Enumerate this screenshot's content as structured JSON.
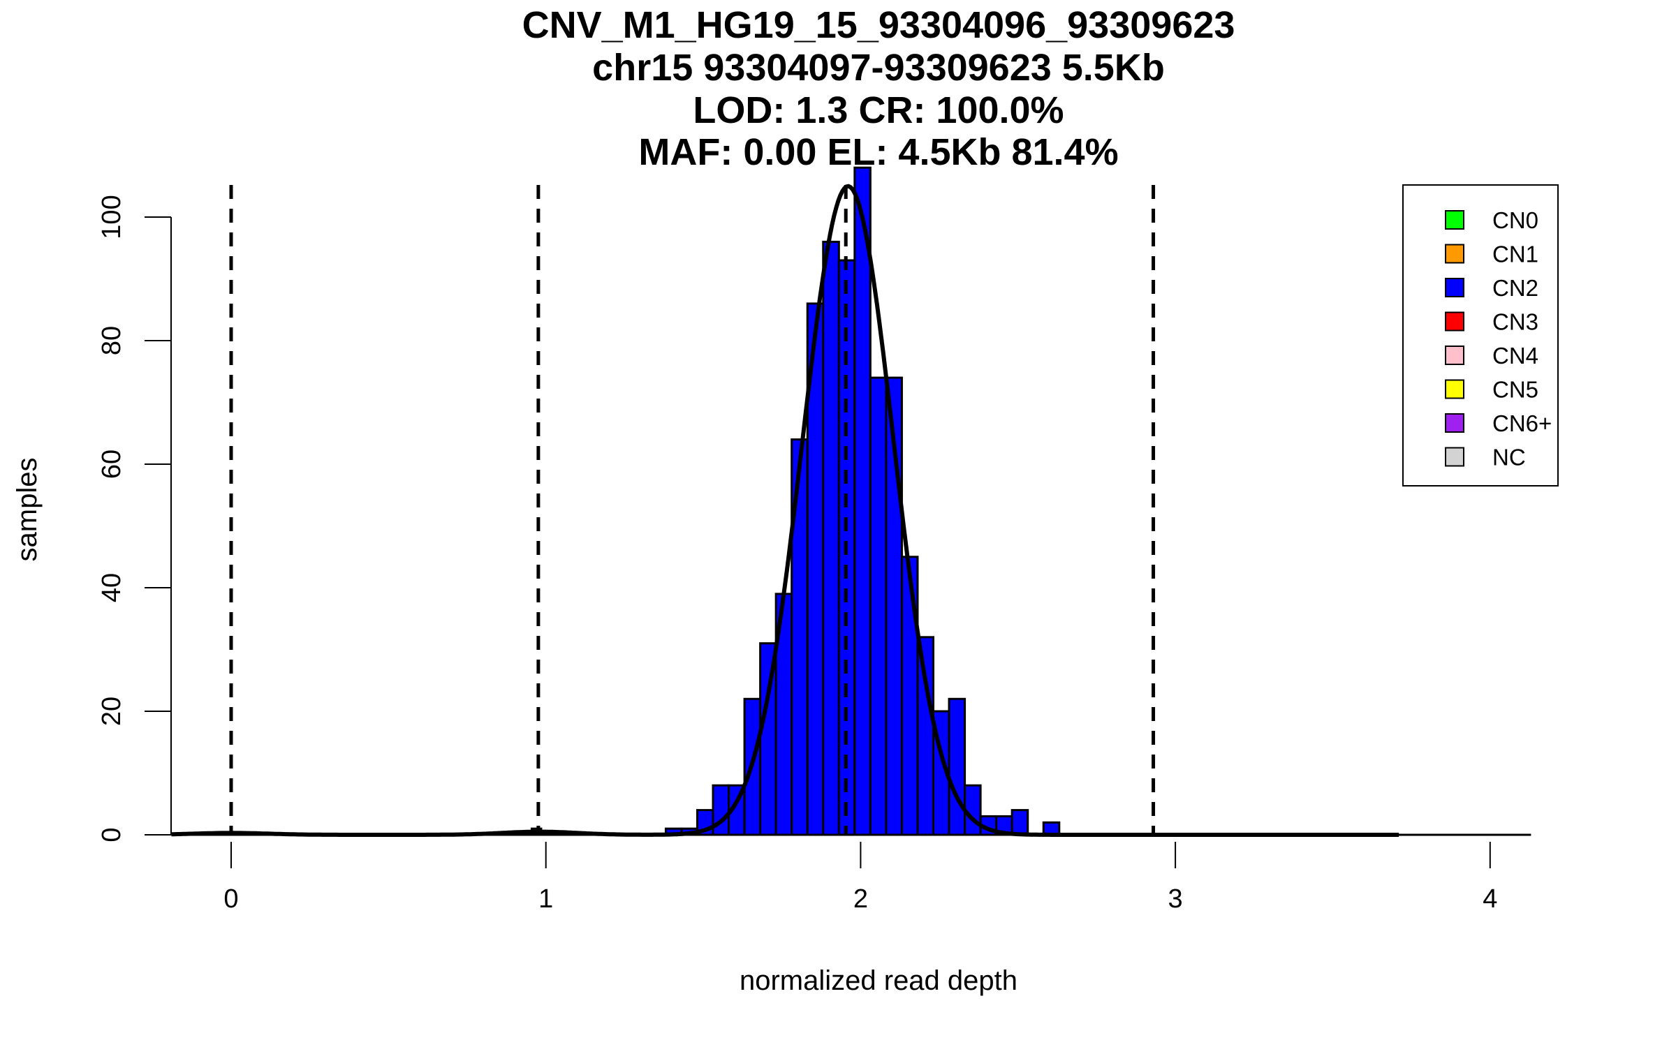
{
  "chart_data": {
    "type": "bar",
    "title_lines": [
      "CNV_M1_HG19_15_93304096_93309623",
      "chr15 93304097-93309623 5.5Kb",
      "LOD: 1.3 CR: 100.0%",
      "MAF: 0.00 EL: 4.5Kb 81.4%"
    ],
    "xlabel": "normalized read depth",
    "ylabel": "samples",
    "xlim": [
      -0.19,
      4.13
    ],
    "ylim": [
      0,
      108
    ],
    "xticks": [
      0,
      1,
      2,
      3,
      4
    ],
    "xtick_labels": [
      "0",
      "1",
      "2",
      "3",
      "4"
    ],
    "yticks": [
      0,
      20,
      40,
      60,
      80,
      100
    ],
    "ytick_labels": [
      "0",
      "20",
      "40",
      "60",
      "80",
      "100"
    ],
    "histogram": {
      "series": "CN2",
      "bin_start": 1.381,
      "bin_width": 0.05,
      "values": [
        1,
        1,
        4,
        8,
        8,
        22,
        31,
        39,
        64,
        86,
        96,
        93,
        108,
        74,
        74,
        45,
        32,
        20,
        22,
        8,
        3,
        3,
        4,
        0,
        2
      ]
    },
    "extra_bars": [
      {
        "series": "CN1",
        "x_start": 0.955,
        "x_end": 0.985,
        "value": 1
      }
    ],
    "dashed_lines_x": [
      0.0,
      0.976,
      1.953,
      2.93
    ],
    "fit_curve": {
      "components": [
        {
          "mean": 1.96,
          "sd": 0.145,
          "peak": 105
        },
        {
          "mean": 0.98,
          "sd": 0.12,
          "peak": 0.5
        },
        {
          "mean": 0.0,
          "sd": 0.12,
          "peak": 0.3
        }
      ]
    },
    "legend": {
      "placement": "top-right",
      "items": [
        {
          "label": "CN0",
          "color": "#00ff00"
        },
        {
          "label": "CN1",
          "color": "#ff9900"
        },
        {
          "label": "CN2",
          "color": "#0000ff"
        },
        {
          "label": "CN3",
          "color": "#ff0000"
        },
        {
          "label": "CN4",
          "color": "#ffc0cb"
        },
        {
          "label": "CN5",
          "color": "#ffff00"
        },
        {
          "label": "CN6+",
          "color": "#a020f0"
        },
        {
          "label": "NC",
          "color": "#d3d3d3"
        }
      ]
    }
  }
}
